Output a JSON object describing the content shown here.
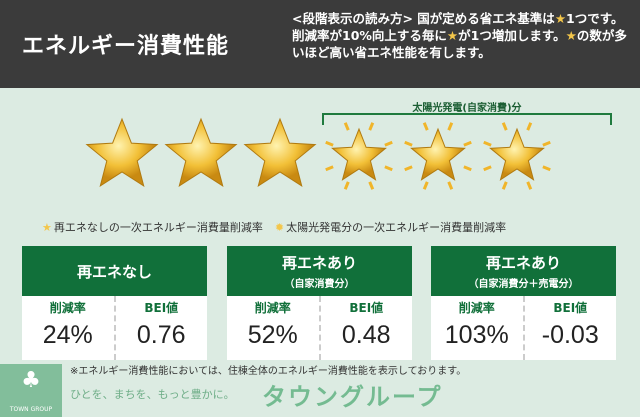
{
  "header": {
    "title": "エネルギー消費性能",
    "description_parts": [
      "<段階表示の読み方> 国が定める省エネ基準は",
      "1つです。削減率が10%向上する毎に",
      "が1つ増加します。",
      "の数が多いほど高い省エネ性能を有します。"
    ]
  },
  "stars": {
    "total": 6,
    "base_count": 3,
    "solar_count": 3,
    "solar_label": "太陽光発電(自家消費)分"
  },
  "legend": {
    "base": "再エネなしの一次エネルギー消費量削減率",
    "solar": "太陽光発電分の一次エネルギー消費量削減率"
  },
  "cards": [
    {
      "title": "再エネなし",
      "subtitle": "",
      "rate_label": "削減率",
      "bei_label": "BEI値",
      "rate": "24%",
      "bei": "0.76"
    },
    {
      "title": "再エネあり",
      "subtitle": "（自家消費分）",
      "rate_label": "削減率",
      "bei_label": "BEI値",
      "rate": "52%",
      "bei": "0.48"
    },
    {
      "title": "再エネあり",
      "subtitle": "（自家消費分＋売電分）",
      "rate_label": "削減率",
      "bei_label": "BEI値",
      "rate": "103%",
      "bei": "-0.03"
    }
  ],
  "note": "※エネルギー消費性能においては、住棟全体のエネルギー消費性能を表示しております。",
  "watermark": {
    "slogan": "ひとを、まちを、もっと豊かに。",
    "brand": "タウングループ",
    "brand_en": "TOWN GROUP"
  },
  "colors": {
    "header_bg": "#3b3b3b",
    "accent_green": "#11703a",
    "star": "#f0b52a",
    "bg": "#dcebe2"
  }
}
